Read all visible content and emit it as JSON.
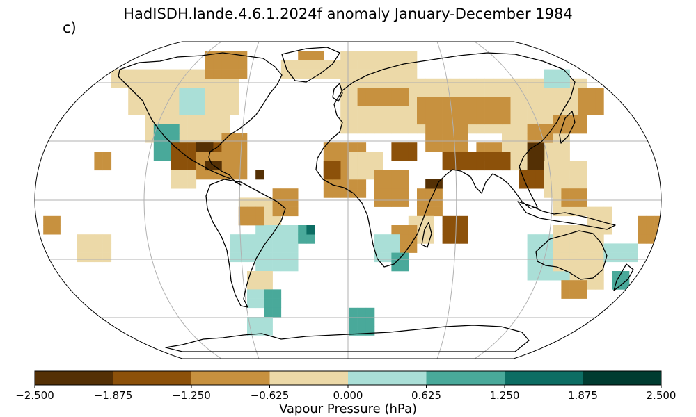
{
  "figure": {
    "title": "HadISDH.lande.4.6.1.2024f anomaly January-December 1984",
    "panel_label": "c)"
  },
  "map": {
    "projection": "Robinson",
    "graticule": true,
    "coastlines": true
  },
  "colorbar": {
    "label": "Vapour Pressure (hPa)",
    "ticks": [
      "−2.500",
      "−1.875",
      "−1.250",
      "−0.625",
      "0.000",
      "0.625",
      "1.250",
      "1.875",
      "2.500"
    ],
    "colors": [
      "#543005",
      "#8c510a",
      "#c7913f",
      "#ecd9a8",
      "#aadfd7",
      "#49a99a",
      "#0c6d63",
      "#003b30"
    ],
    "range": [
      -2.5,
      2.5
    ]
  }
}
